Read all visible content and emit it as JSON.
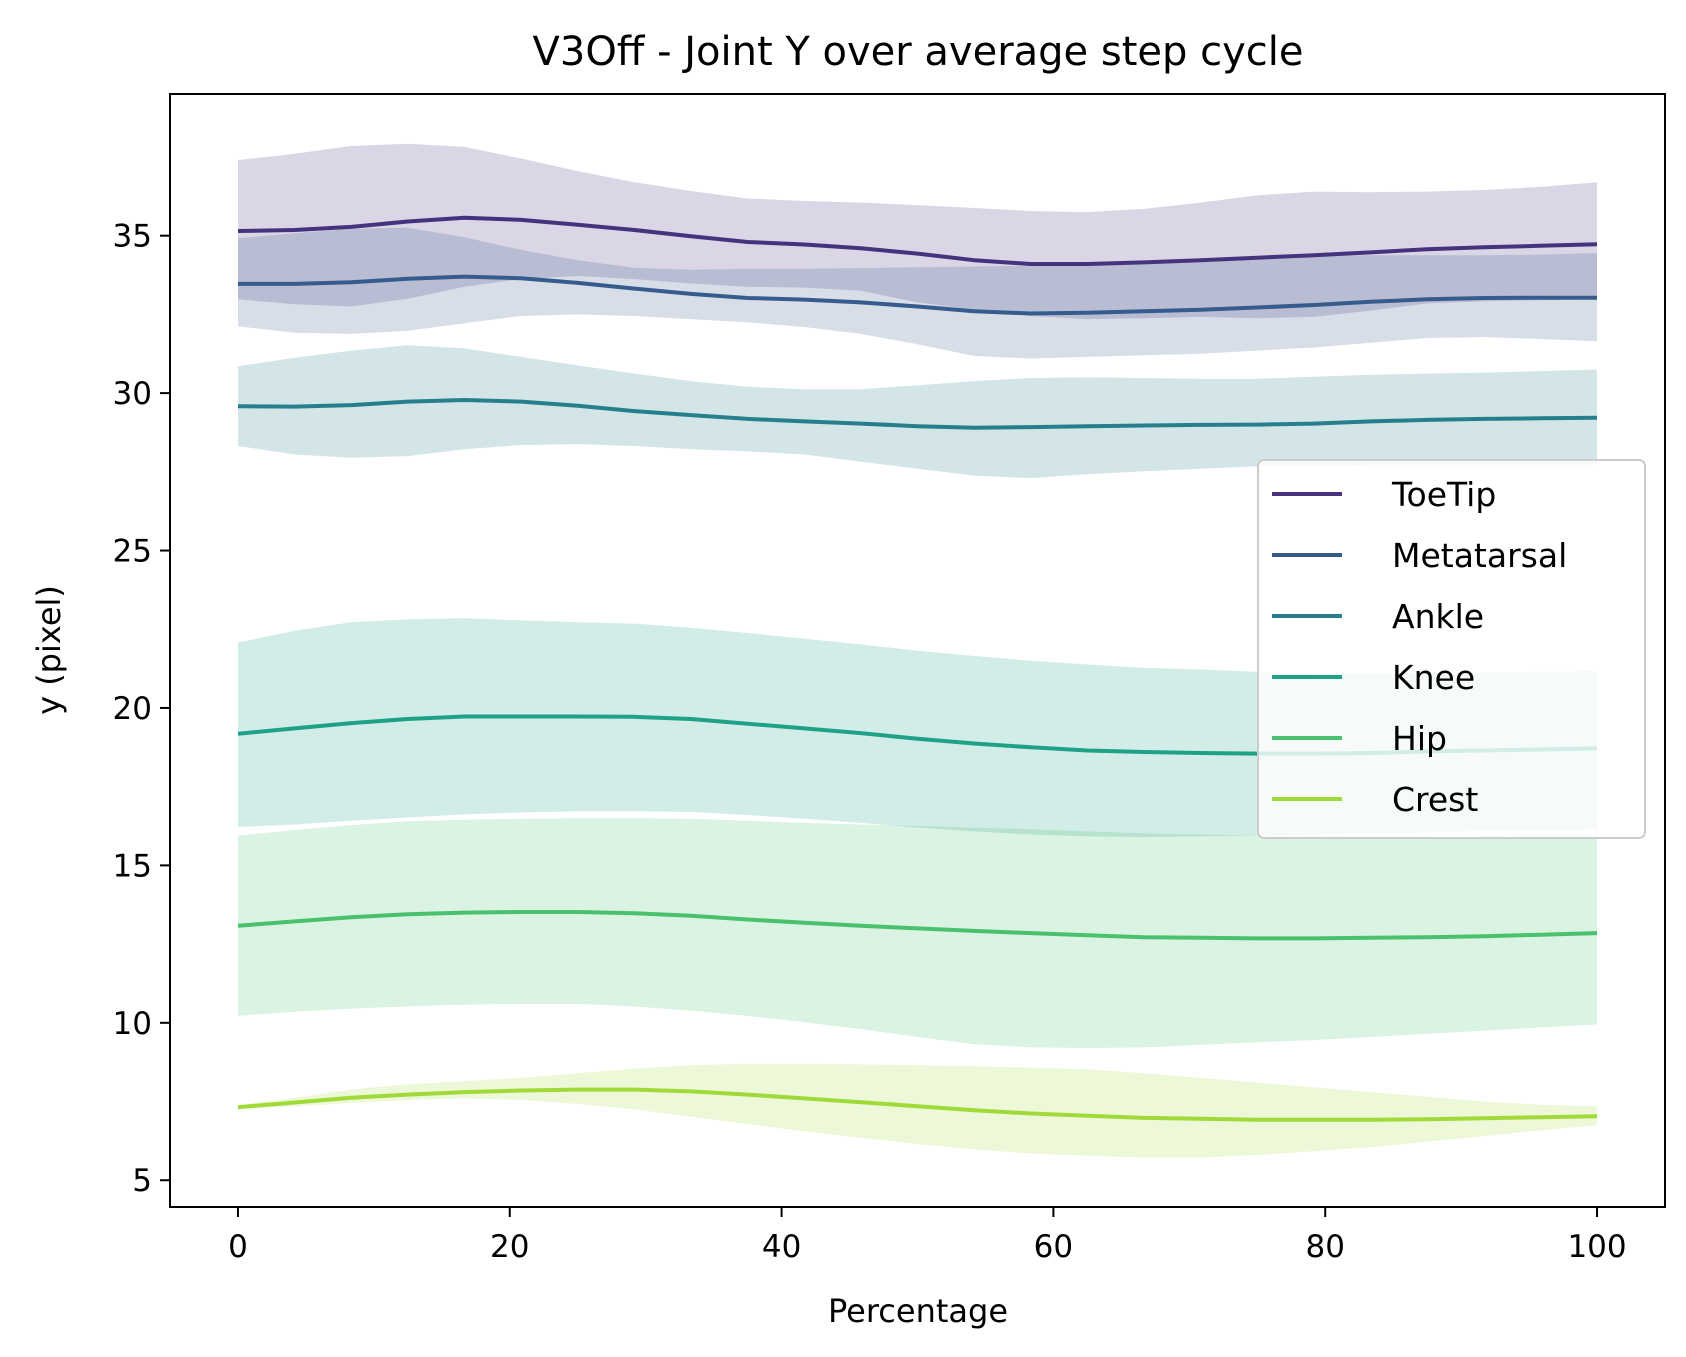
{
  "chart_data": {
    "type": "line",
    "title": "V3Off - Joint Y over average step cycle",
    "xlabel": "Percentage",
    "ylabel": "y (pixel)",
    "xlim": [
      -5,
      105
    ],
    "ylim": [
      4.15,
      39.5
    ],
    "xticks": [
      0,
      20,
      40,
      60,
      80,
      100
    ],
    "yticks": [
      5,
      10,
      15,
      20,
      25,
      30,
      35
    ],
    "grid": false,
    "legend_position": "center-right",
    "x": [
      0,
      4.17,
      8.33,
      12.5,
      16.67,
      20.83,
      25,
      29.17,
      33.33,
      37.5,
      41.67,
      45.83,
      50,
      54.17,
      58.33,
      62.5,
      66.67,
      70.83,
      75,
      79.17,
      83.33,
      87.5,
      91.67,
      95.83,
      100
    ],
    "series": [
      {
        "name": "ToeTip",
        "color": "#46337e",
        "mean": [
          35.15,
          35.18,
          35.28,
          35.45,
          35.57,
          35.5,
          35.35,
          35.18,
          34.98,
          34.8,
          34.72,
          34.6,
          34.43,
          34.22,
          34.1,
          34.1,
          34.15,
          34.22,
          34.3,
          34.38,
          34.47,
          34.57,
          34.63,
          34.68,
          34.73
        ],
        "upper": [
          37.4,
          37.6,
          37.85,
          37.92,
          37.82,
          37.45,
          37.05,
          36.7,
          36.42,
          36.18,
          36.1,
          36.05,
          35.97,
          35.88,
          35.78,
          35.75,
          35.85,
          36.05,
          36.28,
          36.4,
          36.38,
          36.4,
          36.45,
          36.55,
          36.7
        ],
        "lower": [
          32.98,
          32.82,
          32.75,
          33.0,
          33.38,
          33.62,
          33.72,
          33.62,
          33.48,
          33.38,
          33.35,
          33.25,
          32.88,
          32.65,
          32.45,
          32.35,
          32.38,
          32.42,
          32.38,
          32.42,
          32.62,
          32.85,
          32.92,
          32.95,
          32.98
        ]
      },
      {
        "name": "Metatarsal",
        "color": "#365c8d",
        "mean": [
          33.47,
          33.47,
          33.52,
          33.63,
          33.7,
          33.65,
          33.5,
          33.32,
          33.15,
          33.02,
          32.97,
          32.88,
          32.75,
          32.6,
          32.53,
          32.55,
          32.6,
          32.65,
          32.72,
          32.8,
          32.9,
          32.98,
          33.02,
          33.03,
          33.03
        ],
        "upper": [
          34.92,
          35.08,
          35.22,
          35.25,
          34.95,
          34.55,
          34.22,
          33.98,
          33.92,
          33.95,
          33.95,
          33.97,
          34.0,
          34.02,
          34.05,
          34.1,
          34.18,
          34.25,
          34.3,
          34.35,
          34.38,
          34.38,
          34.38,
          34.4,
          34.45
        ],
        "lower": [
          32.12,
          31.92,
          31.88,
          31.98,
          32.22,
          32.45,
          32.5,
          32.45,
          32.35,
          32.25,
          32.1,
          31.88,
          31.55,
          31.18,
          31.1,
          31.15,
          31.2,
          31.25,
          31.35,
          31.45,
          31.6,
          31.75,
          31.78,
          31.72,
          31.65
        ]
      },
      {
        "name": "Ankle",
        "color": "#277f8e",
        "mean": [
          29.58,
          29.57,
          29.62,
          29.73,
          29.78,
          29.73,
          29.6,
          29.43,
          29.3,
          29.18,
          29.1,
          29.03,
          28.95,
          28.9,
          28.92,
          28.95,
          28.97,
          28.99,
          29.0,
          29.03,
          29.1,
          29.15,
          29.18,
          29.2,
          29.22
        ],
        "upper": [
          30.85,
          31.12,
          31.35,
          31.52,
          31.42,
          31.15,
          30.88,
          30.62,
          30.38,
          30.2,
          30.12,
          30.12,
          30.25,
          30.38,
          30.48,
          30.5,
          30.48,
          30.45,
          30.45,
          30.52,
          30.58,
          30.62,
          30.65,
          30.7,
          30.75
        ],
        "lower": [
          28.32,
          28.05,
          27.95,
          28.0,
          28.22,
          28.35,
          28.38,
          28.32,
          28.22,
          28.15,
          28.05,
          27.82,
          27.6,
          27.38,
          27.3,
          27.42,
          27.52,
          27.6,
          27.68,
          27.7,
          27.72,
          27.72,
          27.72,
          27.72,
          27.72
        ]
      },
      {
        "name": "Knee",
        "color": "#1fa187",
        "mean": [
          19.18,
          19.35,
          19.52,
          19.65,
          19.73,
          19.73,
          19.73,
          19.72,
          19.65,
          19.5,
          19.35,
          19.2,
          19.02,
          18.87,
          18.75,
          18.65,
          18.6,
          18.57,
          18.55,
          18.55,
          18.57,
          18.62,
          18.65,
          18.68,
          18.72
        ],
        "upper": [
          22.08,
          22.45,
          22.72,
          22.82,
          22.85,
          22.78,
          22.72,
          22.68,
          22.55,
          22.38,
          22.2,
          22.02,
          21.82,
          21.65,
          21.5,
          21.38,
          21.28,
          21.22,
          21.15,
          21.1,
          21.08,
          21.1,
          21.13,
          21.15,
          21.18
        ],
        "lower": [
          16.22,
          16.3,
          16.42,
          16.52,
          16.62,
          16.68,
          16.72,
          16.72,
          16.7,
          16.6,
          16.48,
          16.35,
          16.2,
          16.08,
          15.98,
          15.92,
          15.9,
          15.92,
          15.95,
          15.98,
          16.02,
          16.05,
          16.1,
          16.12,
          16.15
        ]
      },
      {
        "name": "Hip",
        "color": "#4ac16d",
        "mean": [
          13.08,
          13.22,
          13.35,
          13.45,
          13.5,
          13.52,
          13.52,
          13.48,
          13.4,
          13.28,
          13.18,
          13.08,
          13.0,
          12.92,
          12.85,
          12.78,
          12.72,
          12.7,
          12.68,
          12.68,
          12.7,
          12.72,
          12.75,
          12.8,
          12.85
        ],
        "upper": [
          15.95,
          16.12,
          16.28,
          16.4,
          16.45,
          16.48,
          16.5,
          16.5,
          16.48,
          16.42,
          16.35,
          16.3,
          16.25,
          16.2,
          16.15,
          16.08,
          16.02,
          15.98,
          15.95,
          15.92,
          15.92,
          15.92,
          15.93,
          15.95,
          15.98
        ],
        "lower": [
          10.22,
          10.35,
          10.45,
          10.52,
          10.58,
          10.6,
          10.6,
          10.52,
          10.38,
          10.22,
          10.02,
          9.8,
          9.55,
          9.32,
          9.22,
          9.2,
          9.22,
          9.3,
          9.38,
          9.45,
          9.55,
          9.65,
          9.75,
          9.85,
          9.95
        ]
      },
      {
        "name": "Crest",
        "color": "#a0da39",
        "mean": [
          7.32,
          7.47,
          7.62,
          7.72,
          7.8,
          7.85,
          7.88,
          7.88,
          7.82,
          7.72,
          7.6,
          7.48,
          7.35,
          7.22,
          7.12,
          7.05,
          6.98,
          6.95,
          6.92,
          6.92,
          6.92,
          6.94,
          6.97,
          7.0,
          7.03
        ],
        "upper": [
          7.38,
          7.62,
          7.88,
          8.05,
          8.15,
          8.25,
          8.4,
          8.55,
          8.65,
          8.7,
          8.7,
          8.68,
          8.65,
          8.62,
          8.58,
          8.52,
          8.4,
          8.25,
          8.1,
          7.95,
          7.8,
          7.65,
          7.5,
          7.4,
          7.35
        ],
        "lower": [
          7.28,
          7.35,
          7.45,
          7.55,
          7.6,
          7.55,
          7.42,
          7.25,
          7.02,
          6.78,
          6.55,
          6.35,
          6.15,
          5.98,
          5.85,
          5.78,
          5.72,
          5.72,
          5.8,
          5.92,
          6.05,
          6.22,
          6.4,
          6.58,
          6.75
        ]
      }
    ]
  }
}
